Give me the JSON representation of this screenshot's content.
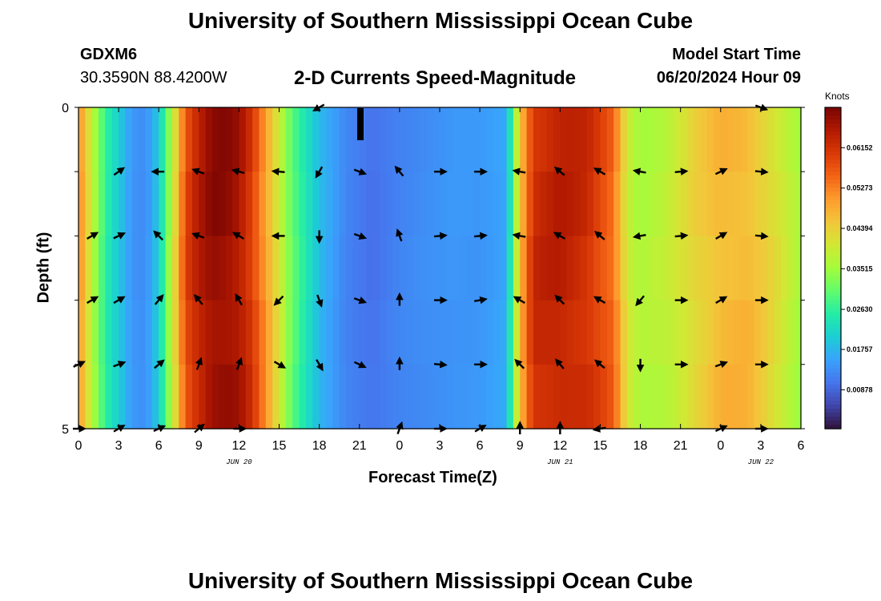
{
  "header": {
    "title": "University of Southern Mississippi Ocean Cube",
    "station": "GDXM6",
    "location": "30.3590N  88.4200W",
    "subtitle": "2-D Currents Speed-Magnitude",
    "model_start_label": "Model Start Time",
    "model_start_value": "06/20/2024 Hour 09"
  },
  "footer": {
    "title": "University of Southern Mississippi Ocean Cube"
  },
  "colors": {
    "colormap": [
      "#30123b",
      "#4145ab",
      "#4675ed",
      "#39a2fc",
      "#1bcfd4",
      "#24eca6",
      "#61fc6c",
      "#a4fc3b",
      "#d1e834",
      "#f3c63a",
      "#fe9b2d",
      "#f36315",
      "#d93806",
      "#b11901",
      "#7a0403"
    ]
  },
  "chart_data": {
    "type": "heatmap",
    "title": "2-D Currents Speed-Magnitude",
    "xlabel": "Forecast Time(Z)",
    "ylabel": "Depth (ft)",
    "colorbar_label": "Knots",
    "colorbar_ticks": [
      "0.00878",
      "0.01757",
      "0.02630",
      "0.03515",
      "0.04394",
      "0.05273",
      "0.06152"
    ],
    "colorbar_tick_values": [
      0.00878,
      0.01757,
      0.0263,
      0.03515,
      0.04394,
      0.05273,
      0.06152
    ],
    "value_range": [
      0.0003,
      0.0703
    ],
    "x_tick_labels": [
      "0",
      "3",
      "6",
      "9",
      "12",
      "15",
      "18",
      "21",
      "0",
      "3",
      "6",
      "9",
      "12",
      "15",
      "18",
      "21",
      "0",
      "3",
      "6"
    ],
    "x_range_hours": [
      0,
      54
    ],
    "date_labels": [
      {
        "text": "JUN 20",
        "hour": 12
      },
      {
        "text": "JUN 21",
        "hour": 36
      },
      {
        "text": "JUN 22",
        "hour": 51
      }
    ],
    "y_tick_labels": [
      "0",
      "5"
    ],
    "depth_range_ft": [
      0,
      5
    ],
    "depth_levels_ft": [
      0,
      1,
      2,
      3,
      4,
      5
    ],
    "speed_profile": {
      "hours": [
        0,
        1,
        2,
        3,
        4,
        5,
        6,
        7,
        8,
        9,
        10,
        11,
        12,
        13,
        14,
        15,
        16,
        17,
        18,
        20,
        22,
        24,
        26,
        28,
        30,
        32,
        33,
        34,
        36,
        38,
        40,
        41,
        42,
        44,
        46,
        48,
        50,
        52,
        54
      ],
      "speeds": [
        0.052,
        0.038,
        0.026,
        0.02,
        0.014,
        0.013,
        0.02,
        0.038,
        0.058,
        0.064,
        0.068,
        0.068,
        0.066,
        0.06,
        0.05,
        0.04,
        0.03,
        0.024,
        0.018,
        0.012,
        0.01,
        0.012,
        0.013,
        0.014,
        0.014,
        0.016,
        0.046,
        0.062,
        0.064,
        0.062,
        0.055,
        0.04,
        0.036,
        0.038,
        0.043,
        0.047,
        0.047,
        0.042,
        0.035
      ]
    },
    "arrows": [
      {
        "hour": 1,
        "depth": 2,
        "angle": -30
      },
      {
        "hour": 1,
        "depth": 3,
        "angle": -30
      },
      {
        "hour": 0,
        "depth": 4,
        "angle": -25
      },
      {
        "hour": 0,
        "depth": 5,
        "angle": 0
      },
      {
        "hour": 3,
        "depth": 1,
        "angle": -35
      },
      {
        "hour": 3,
        "depth": 2,
        "angle": -25
      },
      {
        "hour": 3,
        "depth": 3,
        "angle": -30
      },
      {
        "hour": 3,
        "depth": 4,
        "angle": -20
      },
      {
        "hour": 3,
        "depth": 5,
        "angle": -30
      },
      {
        "hour": 6,
        "depth": 1,
        "angle": 180
      },
      {
        "hour": 6,
        "depth": 2,
        "angle": -135
      },
      {
        "hour": 6,
        "depth": 3,
        "angle": -50
      },
      {
        "hour": 6,
        "depth": 4,
        "angle": -40
      },
      {
        "hour": 6,
        "depth": 5,
        "angle": -25
      },
      {
        "hour": 9,
        "depth": 1,
        "angle": -160
      },
      {
        "hour": 9,
        "depth": 2,
        "angle": -160
      },
      {
        "hour": 9,
        "depth": 3,
        "angle": -130
      },
      {
        "hour": 9,
        "depth": 4,
        "angle": -70
      },
      {
        "hour": 9,
        "depth": 5,
        "angle": -40
      },
      {
        "hour": 12,
        "depth": 1,
        "angle": -165
      },
      {
        "hour": 12,
        "depth": 2,
        "angle": -150
      },
      {
        "hour": 12,
        "depth": 3,
        "angle": -120
      },
      {
        "hour": 12,
        "depth": 4,
        "angle": -70
      },
      {
        "hour": 12,
        "depth": 5,
        "angle": 0
      },
      {
        "hour": 15,
        "depth": 1,
        "angle": -175
      },
      {
        "hour": 15,
        "depth": 2,
        "angle": -180
      },
      {
        "hour": 15,
        "depth": 3,
        "angle": 135
      },
      {
        "hour": 15,
        "depth": 4,
        "angle": 30
      },
      {
        "hour": 18,
        "depth": 0,
        "angle": 150
      },
      {
        "hour": 18,
        "depth": 1,
        "angle": 120
      },
      {
        "hour": 18,
        "depth": 2,
        "angle": 90
      },
      {
        "hour": 18,
        "depth": 3,
        "angle": 70
      },
      {
        "hour": 18,
        "depth": 4,
        "angle": 60
      },
      {
        "hour": 21,
        "depth": 1,
        "angle": 20
      },
      {
        "hour": 21,
        "depth": 2,
        "angle": 20
      },
      {
        "hour": 21,
        "depth": 3,
        "angle": 20
      },
      {
        "hour": 21,
        "depth": 4,
        "angle": 25
      },
      {
        "hour": 24,
        "depth": 1,
        "angle": -130
      },
      {
        "hour": 24,
        "depth": 2,
        "angle": -110
      },
      {
        "hour": 24,
        "depth": 3,
        "angle": -90
      },
      {
        "hour": 24,
        "depth": 4,
        "angle": -90
      },
      {
        "hour": 24,
        "depth": 5,
        "angle": -70
      },
      {
        "hour": 27,
        "depth": 1,
        "angle": 0
      },
      {
        "hour": 27,
        "depth": 2,
        "angle": -5
      },
      {
        "hour": 27,
        "depth": 3,
        "angle": 0
      },
      {
        "hour": 27,
        "depth": 4,
        "angle": 5
      },
      {
        "hour": 27,
        "depth": 5,
        "angle": 0
      },
      {
        "hour": 30,
        "depth": 1,
        "angle": 0
      },
      {
        "hour": 30,
        "depth": 2,
        "angle": -5
      },
      {
        "hour": 30,
        "depth": 3,
        "angle": -10
      },
      {
        "hour": 30,
        "depth": 4,
        "angle": 0
      },
      {
        "hour": 30,
        "depth": 5,
        "angle": -30
      },
      {
        "hour": 33,
        "depth": 1,
        "angle": -170
      },
      {
        "hour": 33,
        "depth": 2,
        "angle": -170
      },
      {
        "hour": 33,
        "depth": 3,
        "angle": -150
      },
      {
        "hour": 33,
        "depth": 4,
        "angle": -135
      },
      {
        "hour": 33,
        "depth": 5,
        "angle": -90
      },
      {
        "hour": 36,
        "depth": 1,
        "angle": -140
      },
      {
        "hour": 36,
        "depth": 2,
        "angle": -150
      },
      {
        "hour": 36,
        "depth": 3,
        "angle": -135
      },
      {
        "hour": 36,
        "depth": 4,
        "angle": -130
      },
      {
        "hour": 36,
        "depth": 5,
        "angle": -90
      },
      {
        "hour": 39,
        "depth": 1,
        "angle": -150
      },
      {
        "hour": 39,
        "depth": 2,
        "angle": -140
      },
      {
        "hour": 39,
        "depth": 3,
        "angle": -150
      },
      {
        "hour": 39,
        "depth": 4,
        "angle": -140
      },
      {
        "hour": 39,
        "depth": 5,
        "angle": 170
      },
      {
        "hour": 42,
        "depth": 1,
        "angle": -170
      },
      {
        "hour": 42,
        "depth": 2,
        "angle": 170
      },
      {
        "hour": 42,
        "depth": 3,
        "angle": 130
      },
      {
        "hour": 42,
        "depth": 4,
        "angle": 90
      },
      {
        "hour": 45,
        "depth": 1,
        "angle": -5
      },
      {
        "hour": 45,
        "depth": 2,
        "angle": -5
      },
      {
        "hour": 45,
        "depth": 3,
        "angle": 0
      },
      {
        "hour": 45,
        "depth": 4,
        "angle": 0
      },
      {
        "hour": 48,
        "depth": 1,
        "angle": -25
      },
      {
        "hour": 48,
        "depth": 2,
        "angle": -30
      },
      {
        "hour": 48,
        "depth": 3,
        "angle": -30
      },
      {
        "hour": 48,
        "depth": 4,
        "angle": -20
      },
      {
        "hour": 48,
        "depth": 5,
        "angle": -25
      },
      {
        "hour": 51,
        "depth": 0,
        "angle": 20
      },
      {
        "hour": 51,
        "depth": 1,
        "angle": 5
      },
      {
        "hour": 51,
        "depth": 2,
        "angle": 5
      },
      {
        "hour": 51,
        "depth": 3,
        "angle": 0
      },
      {
        "hour": 51,
        "depth": 4,
        "angle": 0
      },
      {
        "hour": 51,
        "depth": 5,
        "angle": 0
      }
    ]
  }
}
